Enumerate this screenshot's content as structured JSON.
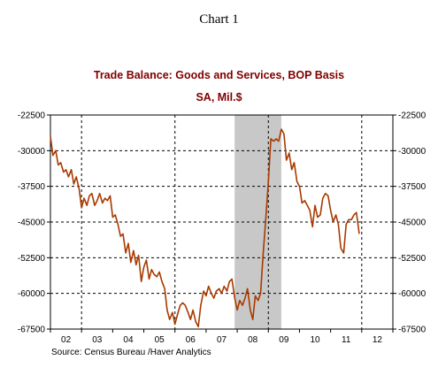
{
  "header": "Chart 1",
  "colors": {
    "title": "#800000",
    "series": "#a83a00",
    "recession": "#c8c8c8"
  },
  "chart_data": {
    "type": "line",
    "title": "Trade Balance:  Goods and Services, BOP Basis",
    "subtitle": "SA, Mil.$",
    "source": "Source:  Census Bureau /Haver Analytics",
    "ylim": [
      -67500,
      -22500
    ],
    "y_ticks": [
      -22500,
      -30000,
      -37500,
      -45000,
      -52500,
      -60000,
      -67500
    ],
    "y_tick_labels": [
      "-22500",
      "-30000",
      "-37500",
      "-45000",
      "-52500",
      "-60000",
      "-67500"
    ],
    "xlim": [
      2002.0,
      2013.0
    ],
    "x_tick_labels": [
      {
        "label": "02",
        "x": 2002.5
      },
      {
        "label": "03",
        "x": 2003.5
      },
      {
        "label": "04",
        "x": 2004.5
      },
      {
        "label": "05",
        "x": 2005.5
      },
      {
        "label": "06",
        "x": 2006.5
      },
      {
        "label": "07",
        "x": 2007.5
      },
      {
        "label": "08",
        "x": 2008.5
      },
      {
        "label": "09",
        "x": 2009.5
      },
      {
        "label": "10",
        "x": 2010.5
      },
      {
        "label": "11",
        "x": 2011.5
      },
      {
        "label": "12",
        "x": 2012.5
      }
    ],
    "grid": {
      "x_dashed_at": [
        2003,
        2006,
        2009,
        2012
      ],
      "y_dashed_at": [
        -30000,
        -37500,
        -45000,
        -52500,
        -60000,
        -67500
      ]
    },
    "recession": [
      2007.917,
      2009.417
    ],
    "series": [
      {
        "values": [
          [
            2002.0,
            -27000
          ],
          [
            2002.08,
            -31000
          ],
          [
            2002.17,
            -30000
          ],
          [
            2002.25,
            -33000
          ],
          [
            2002.33,
            -32500
          ],
          [
            2002.42,
            -34500
          ],
          [
            2002.5,
            -34000
          ],
          [
            2002.58,
            -35500
          ],
          [
            2002.67,
            -34000
          ],
          [
            2002.75,
            -37000
          ],
          [
            2002.83,
            -35500
          ],
          [
            2002.92,
            -38000
          ],
          [
            2003.0,
            -42000
          ],
          [
            2003.08,
            -40000
          ],
          [
            2003.17,
            -41500
          ],
          [
            2003.25,
            -39500
          ],
          [
            2003.33,
            -39000
          ],
          [
            2003.42,
            -41500
          ],
          [
            2003.5,
            -40500
          ],
          [
            2003.58,
            -39000
          ],
          [
            2003.67,
            -41000
          ],
          [
            2003.75,
            -40000
          ],
          [
            2003.83,
            -40500
          ],
          [
            2003.92,
            -39500
          ],
          [
            2004.0,
            -44000
          ],
          [
            2004.08,
            -43500
          ],
          [
            2004.17,
            -45500
          ],
          [
            2004.25,
            -48000
          ],
          [
            2004.33,
            -47500
          ],
          [
            2004.42,
            -51500
          ],
          [
            2004.5,
            -49500
          ],
          [
            2004.58,
            -53500
          ],
          [
            2004.67,
            -51000
          ],
          [
            2004.75,
            -54000
          ],
          [
            2004.83,
            -52000
          ],
          [
            2004.92,
            -57500
          ],
          [
            2005.0,
            -54500
          ],
          [
            2005.08,
            -53000
          ],
          [
            2005.17,
            -57000
          ],
          [
            2005.25,
            -55000
          ],
          [
            2005.33,
            -56000
          ],
          [
            2005.42,
            -56500
          ],
          [
            2005.5,
            -55500
          ],
          [
            2005.58,
            -57500
          ],
          [
            2005.67,
            -59000
          ],
          [
            2005.75,
            -63500
          ],
          [
            2005.83,
            -65500
          ],
          [
            2005.92,
            -64000
          ],
          [
            2006.0,
            -66500
          ],
          [
            2006.08,
            -64500
          ],
          [
            2006.17,
            -62500
          ],
          [
            2006.25,
            -62000
          ],
          [
            2006.33,
            -62500
          ],
          [
            2006.42,
            -64000
          ],
          [
            2006.5,
            -65500
          ],
          [
            2006.58,
            -63500
          ],
          [
            2006.67,
            -66000
          ],
          [
            2006.75,
            -67000
          ],
          [
            2006.83,
            -62500
          ],
          [
            2006.92,
            -59500
          ],
          [
            2007.0,
            -60500
          ],
          [
            2007.08,
            -58500
          ],
          [
            2007.17,
            -60000
          ],
          [
            2007.25,
            -61000
          ],
          [
            2007.33,
            -59500
          ],
          [
            2007.42,
            -59000
          ],
          [
            2007.5,
            -60000
          ],
          [
            2007.58,
            -58500
          ],
          [
            2007.67,
            -59500
          ],
          [
            2007.75,
            -57500
          ],
          [
            2007.83,
            -57000
          ],
          [
            2007.92,
            -61000
          ],
          [
            2008.0,
            -63500
          ],
          [
            2008.08,
            -61500
          ],
          [
            2008.17,
            -62500
          ],
          [
            2008.25,
            -61000
          ],
          [
            2008.33,
            -59000
          ],
          [
            2008.42,
            -63500
          ],
          [
            2008.5,
            -65500
          ],
          [
            2008.58,
            -60500
          ],
          [
            2008.67,
            -61500
          ],
          [
            2008.75,
            -60000
          ],
          [
            2008.83,
            -52000
          ],
          [
            2008.92,
            -44000
          ],
          [
            2009.0,
            -36500
          ],
          [
            2009.08,
            -27500
          ],
          [
            2009.17,
            -28000
          ],
          [
            2009.25,
            -27500
          ],
          [
            2009.33,
            -28000
          ],
          [
            2009.42,
            -25500
          ],
          [
            2009.5,
            -26500
          ],
          [
            2009.58,
            -32000
          ],
          [
            2009.67,
            -30500
          ],
          [
            2009.75,
            -34000
          ],
          [
            2009.83,
            -32500
          ],
          [
            2009.92,
            -36500
          ],
          [
            2010.0,
            -37500
          ],
          [
            2010.08,
            -41000
          ],
          [
            2010.17,
            -40500
          ],
          [
            2010.25,
            -41500
          ],
          [
            2010.33,
            -42500
          ],
          [
            2010.42,
            -46000
          ],
          [
            2010.5,
            -41500
          ],
          [
            2010.58,
            -44000
          ],
          [
            2010.67,
            -43500
          ],
          [
            2010.75,
            -40000
          ],
          [
            2010.83,
            -39000
          ],
          [
            2010.92,
            -39500
          ],
          [
            2011.0,
            -42500
          ],
          [
            2011.08,
            -45000
          ],
          [
            2011.17,
            -43500
          ],
          [
            2011.25,
            -45500
          ],
          [
            2011.33,
            -50500
          ],
          [
            2011.42,
            -51500
          ],
          [
            2011.5,
            -45500
          ],
          [
            2011.58,
            -44500
          ],
          [
            2011.67,
            -44500
          ],
          [
            2011.75,
            -43500
          ],
          [
            2011.83,
            -43000
          ],
          [
            2011.92,
            -47500
          ]
        ]
      }
    ]
  }
}
